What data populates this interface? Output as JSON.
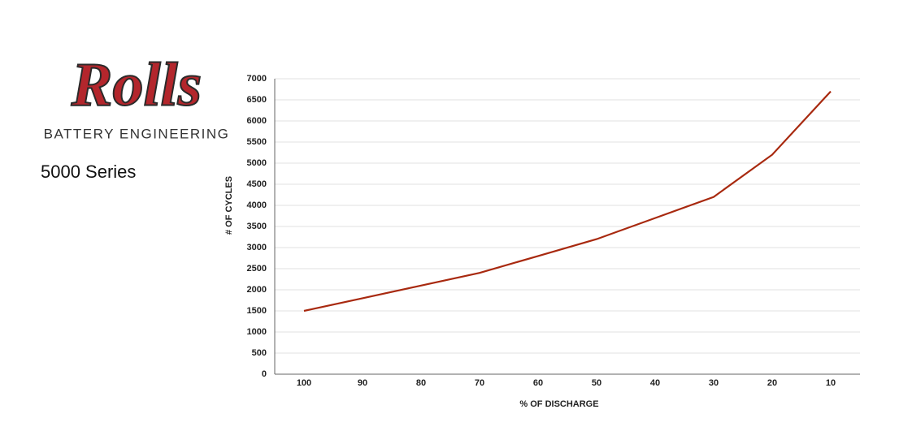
{
  "logo": {
    "name": "Rolls",
    "tagline": "BATTERY ENGINEERING"
  },
  "chart_data": {
    "type": "line",
    "title": "5000 Series",
    "x_label": "% OF DISCHARGE",
    "y_label": "# OF CYCLES",
    "categories": [
      "100",
      "90",
      "80",
      "70",
      "60",
      "50",
      "40",
      "30",
      "20",
      "10"
    ],
    "series": [
      {
        "name": "Cycles",
        "color": "#a8290f",
        "values": [
          1500,
          1800,
          2100,
          2400,
          2800,
          3200,
          3700,
          4200,
          5200,
          6700
        ]
      }
    ],
    "ylim": [
      0,
      7000
    ],
    "yticks": [
      0,
      500,
      1000,
      1500,
      2000,
      2500,
      3000,
      3500,
      4000,
      4500,
      5000,
      5500,
      6000,
      6500,
      7000
    ],
    "grid": true
  }
}
